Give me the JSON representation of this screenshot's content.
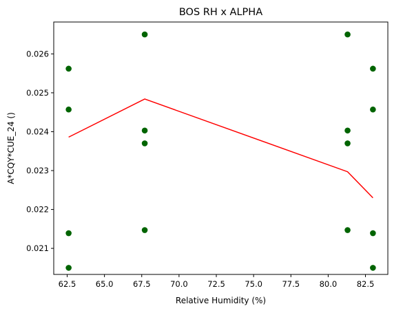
{
  "chart_data": {
    "type": "scatter",
    "title": "BOS RH x ALPHA",
    "xlabel": "Relative Humidity (%)",
    "ylabel": "A*CQY*CUE_24 ()",
    "xlim": [
      61.6,
      84.0
    ],
    "ylim": [
      0.02033,
      0.02682
    ],
    "x_ticks": [
      "62.5",
      "65.0",
      "67.5",
      "70.0",
      "72.5",
      "75.0",
      "77.5",
      "80.0",
      "82.5"
    ],
    "x_tick_values": [
      62.5,
      65.0,
      67.5,
      70.0,
      72.5,
      75.0,
      77.5,
      80.0,
      82.5
    ],
    "y_ticks": [
      "0.021",
      "0.022",
      "0.023",
      "0.024",
      "0.025",
      "0.026"
    ],
    "y_tick_values": [
      0.021,
      0.022,
      0.023,
      0.024,
      0.025,
      0.026
    ],
    "grid": false,
    "series": [
      {
        "kind": "scatter",
        "color": "#006400",
        "points": [
          {
            "x": 62.6,
            "y": 0.02562
          },
          {
            "x": 62.6,
            "y": 0.02457
          },
          {
            "x": 62.6,
            "y": 0.02139
          },
          {
            "x": 62.6,
            "y": 0.0205
          },
          {
            "x": 67.7,
            "y": 0.0265
          },
          {
            "x": 67.7,
            "y": 0.02403
          },
          {
            "x": 67.7,
            "y": 0.0237
          },
          {
            "x": 67.7,
            "y": 0.02147
          },
          {
            "x": 81.3,
            "y": 0.0265
          },
          {
            "x": 81.3,
            "y": 0.02403
          },
          {
            "x": 81.3,
            "y": 0.0237
          },
          {
            "x": 81.3,
            "y": 0.02147
          },
          {
            "x": 83.0,
            "y": 0.02562
          },
          {
            "x": 83.0,
            "y": 0.02457
          },
          {
            "x": 83.0,
            "y": 0.02139
          },
          {
            "x": 83.0,
            "y": 0.0205
          }
        ]
      },
      {
        "kind": "line",
        "color": "#ff0000",
        "points": [
          {
            "x": 62.6,
            "y": 0.02386
          },
          {
            "x": 67.7,
            "y": 0.02484
          },
          {
            "x": 81.3,
            "y": 0.02297
          },
          {
            "x": 83.0,
            "y": 0.0223
          }
        ]
      }
    ]
  }
}
